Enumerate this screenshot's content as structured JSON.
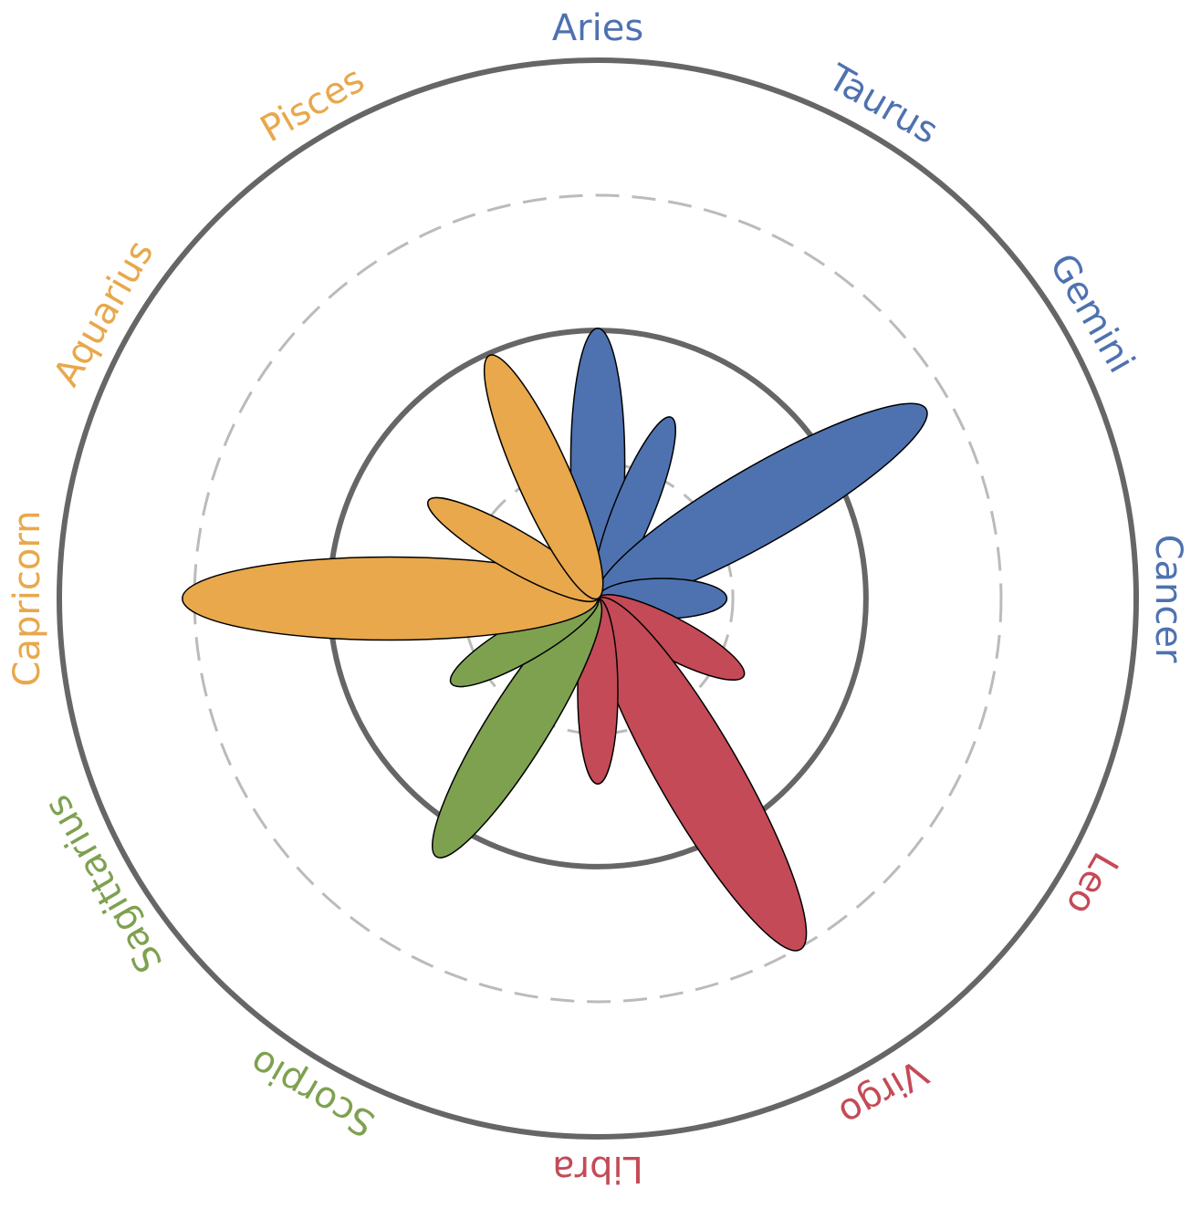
{
  "chart_data": {
    "type": "polar_petal",
    "title": "",
    "categories": [
      "Aries",
      "Taurus",
      "Gemini",
      "Cancer",
      "Leo",
      "Virgo",
      "Libra",
      "Scorpio",
      "Sagittarius",
      "Capricorn",
      "Aquarius",
      "Pisces"
    ],
    "label_colors": [
      "#4e72b0",
      "#4e72b0",
      "#4e72b0",
      "#4e72b0",
      "#c44a57",
      "#c44a57",
      "#c44a57",
      "#7ea150",
      "#7ea150",
      "#e8a84b",
      "#e8a84b",
      "#e8a84b"
    ],
    "groups": [
      {
        "name": "",
        "color": "#4e72b0",
        "signs": [
          "Aries",
          "Taurus",
          "Gemini",
          "Cancer"
        ]
      },
      {
        "name": "",
        "color": "#c44a57",
        "signs": [
          "Leo",
          "Virgo",
          "Libra"
        ]
      },
      {
        "name": "",
        "color": "#7ea150",
        "signs": [
          "Scorpio",
          "Sagittarius"
        ]
      },
      {
        "name": "",
        "color": "#e8a84b",
        "signs": [
          "Capricorn",
          "Aquarius",
          "Pisces"
        ]
      }
    ],
    "petals": [
      {
        "angle_deg": 0,
        "length": 1.34,
        "color": "#4e72b0"
      },
      {
        "angle_deg": 22,
        "length": 0.97,
        "color": "#4e72b0"
      },
      {
        "angle_deg": 60,
        "length": 1.88,
        "color": "#4e72b0"
      },
      {
        "angle_deg": 90,
        "length": 0.64,
        "color": "#4e72b0"
      },
      {
        "angle_deg": 118,
        "length": 0.82,
        "color": "#c44a57"
      },
      {
        "angle_deg": 150,
        "length": 2.01,
        "color": "#c44a57"
      },
      {
        "angle_deg": 180,
        "length": 0.92,
        "color": "#c44a57"
      },
      {
        "angle_deg": 212,
        "length": 1.51,
        "color": "#7ea150"
      },
      {
        "angle_deg": 240,
        "length": 0.84,
        "color": "#7ea150"
      },
      {
        "angle_deg": 270,
        "length": 2.06,
        "color": "#e8a84b"
      },
      {
        "angle_deg": 300,
        "length": 0.97,
        "color": "#e8a84b"
      },
      {
        "angle_deg": 336,
        "length": 1.32,
        "color": "#e8a84b"
      }
    ],
    "rings": [
      {
        "r": 0.67,
        "style": "dashed"
      },
      {
        "r": 1.33,
        "style": "solid"
      },
      {
        "r": 2.0,
        "style": "dashed"
      },
      {
        "r": 2.67,
        "style": "solid"
      }
    ],
    "rmax": 2.67,
    "angle_zero": "top",
    "direction": "clockwise",
    "ring_color": "#666666",
    "grid_color": "#bbbbbb",
    "petal_outline": "#000000",
    "grid": true,
    "legend": "none"
  }
}
